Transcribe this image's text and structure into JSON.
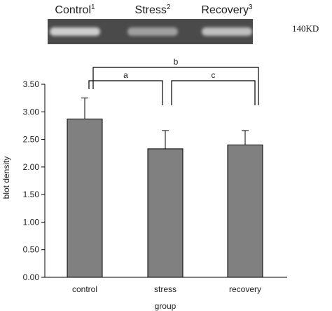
{
  "blot": {
    "lanes": [
      {
        "label": "Control",
        "sup": "1",
        "intensity": 0.85
      },
      {
        "label": "Stress",
        "sup": "2",
        "intensity": 0.55
      },
      {
        "label": "Recovery",
        "sup": "3",
        "intensity": 0.75
      }
    ],
    "size_marker": "140KD"
  },
  "colors": {
    "bar": "#808080",
    "blot_background": "#4a4a4a",
    "band": "#e6e6e6"
  },
  "chart_data": {
    "type": "bar",
    "title": "",
    "xlabel": "group",
    "ylabel": "blot density",
    "categories": [
      "control",
      "stress",
      "recovery"
    ],
    "series": [
      {
        "values": [
          2.87,
          2.33,
          2.4
        ],
        "error_upper": [
          0.38,
          0.33,
          0.26
        ]
      }
    ],
    "ylim": [
      0,
      3.5
    ],
    "yticks": [
      "0.00",
      "0.50",
      "1.00",
      "1.50",
      "2.00",
      "2.50",
      "3.00",
      "3.50"
    ],
    "grid": false,
    "legend": "none",
    "significance": [
      {
        "label": "a",
        "from": "control",
        "to": "stress"
      },
      {
        "label": "b",
        "from": "control",
        "to": "recovery"
      },
      {
        "label": "c",
        "from": "stress",
        "to": "recovery"
      }
    ]
  }
}
